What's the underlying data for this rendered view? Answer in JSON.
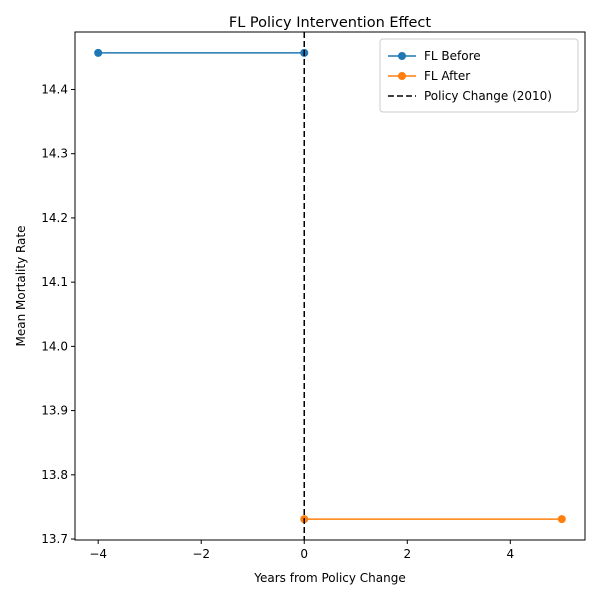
{
  "chart_data": {
    "type": "line",
    "title": "FL Policy Intervention Effect",
    "xlabel": "Years from Policy Change",
    "ylabel": "Mean Mortality Rate",
    "xlim": [
      -4.45,
      5.45
    ],
    "ylim": [
      13.6985,
      14.4895
    ],
    "xticks": [
      -4,
      -2,
      0,
      2,
      4
    ],
    "xtick_labels": [
      "−4",
      "−2",
      "0",
      "2",
      "4"
    ],
    "yticks": [
      13.7,
      13.8,
      13.9,
      14.0,
      14.1,
      14.2,
      14.3,
      14.4
    ],
    "ytick_labels": [
      "13.7",
      "13.8",
      "13.9",
      "14.0",
      "14.1",
      "14.2",
      "14.3",
      "14.4"
    ],
    "grid": false,
    "legend_position": "top-right",
    "series": [
      {
        "name": "FL Before",
        "color": "#1f77b4",
        "x": [
          -4,
          0
        ],
        "y": [
          14.457,
          14.457
        ]
      },
      {
        "name": "FL After",
        "color": "#ff7f0e",
        "x": [
          0,
          5
        ],
        "y": [
          13.731,
          13.731
        ]
      }
    ],
    "vline": {
      "x": 0,
      "label": "Policy Change (2010)",
      "color": "#000000",
      "style": "dashed"
    }
  }
}
